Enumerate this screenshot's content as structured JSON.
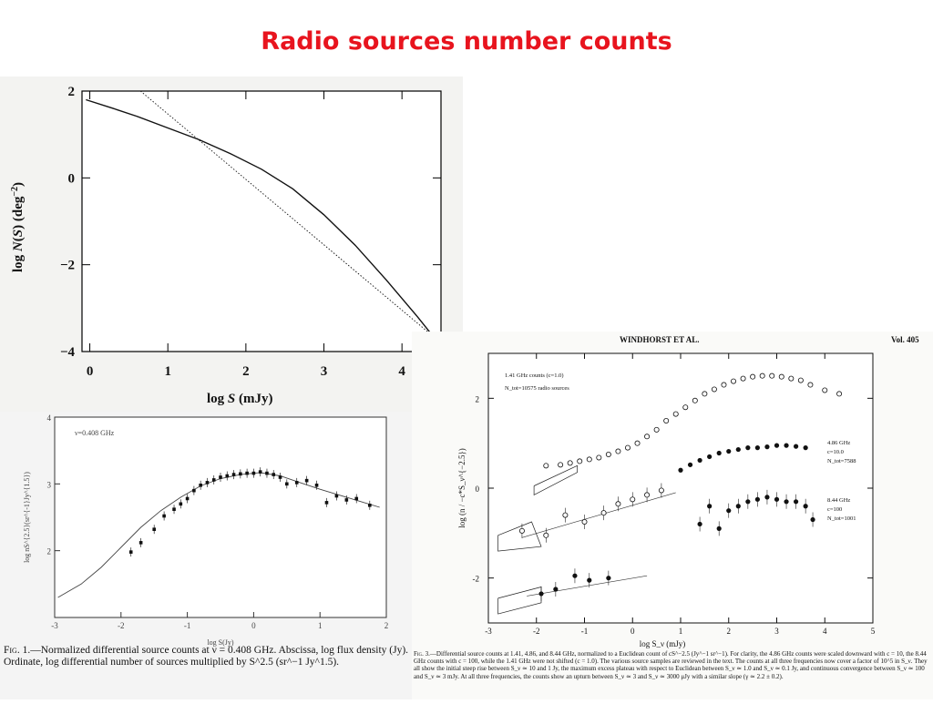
{
  "slide": {
    "title": "Radio sources number counts"
  },
  "chart_data": [
    {
      "type": "line",
      "xlabel_parts": [
        "log ",
        "S",
        " (mJy)"
      ],
      "ylabel_parts": [
        "log ",
        "N",
        "(",
        "S",
        ") (deg",
        "−2",
        ")"
      ],
      "xticks": [
        0,
        1,
        2,
        3,
        4
      ],
      "yticks": [
        2,
        0,
        -2,
        -4
      ],
      "ytick_labels": [
        "2",
        "0",
        "−2",
        "−4"
      ],
      "xlim": [
        -0.1,
        4.5
      ],
      "ylim": [
        -4,
        2
      ],
      "series": [
        {
          "style": "solid",
          "x": [
            -0.05,
            0.3,
            0.6,
            1.0,
            1.4,
            1.8,
            2.2,
            2.6,
            3.0,
            3.4,
            3.8,
            4.2,
            4.4
          ],
          "y": [
            1.8,
            1.6,
            1.42,
            1.15,
            0.88,
            0.56,
            0.2,
            -0.25,
            -0.85,
            -1.55,
            -2.35,
            -3.2,
            -3.65
          ]
        },
        {
          "style": "dotted",
          "x": [
            0.65,
            4.4
          ],
          "y": [
            2.0,
            -3.65
          ]
        }
      ]
    },
    {
      "type": "line",
      "annotation": "ν=0.408 GHz",
      "xlabel": "log S(Jy)",
      "ylabel": "log nS^{2.5}(sr^{-1}Jy^{1.5})",
      "xticks": [
        -3,
        -2,
        -1,
        0,
        1,
        2
      ],
      "yticks": [
        4,
        3,
        2
      ],
      "xlim": [
        -3,
        2
      ],
      "ylim": [
        1,
        4
      ],
      "model": {
        "x": [
          -2.95,
          -2.6,
          -2.3,
          -2.0,
          -1.7,
          -1.4,
          -1.1,
          -0.8,
          -0.5,
          -0.2,
          0.1,
          0.4,
          0.7,
          1.0,
          1.3,
          1.6,
          1.9
        ],
        "y": [
          1.3,
          1.5,
          1.75,
          2.05,
          2.35,
          2.6,
          2.8,
          2.97,
          3.08,
          3.14,
          3.17,
          3.12,
          3.02,
          2.92,
          2.83,
          2.74,
          2.65
        ]
      },
      "points": {
        "x": [
          -1.85,
          -1.7,
          -1.5,
          -1.35,
          -1.2,
          -1.1,
          -1.0,
          -0.9,
          -0.8,
          -0.7,
          -0.6,
          -0.5,
          -0.4,
          -0.3,
          -0.2,
          -0.1,
          0.0,
          0.1,
          0.2,
          0.3,
          0.4,
          0.5,
          0.65,
          0.8,
          0.95,
          1.1,
          1.25,
          1.4,
          1.55,
          1.75
        ],
        "y": [
          1.98,
          2.12,
          2.32,
          2.52,
          2.62,
          2.7,
          2.78,
          2.9,
          2.98,
          3.02,
          3.06,
          3.1,
          3.12,
          3.14,
          3.15,
          3.16,
          3.16,
          3.18,
          3.16,
          3.14,
          3.1,
          3.0,
          3.02,
          3.05,
          2.98,
          2.72,
          2.82,
          2.76,
          2.78,
          2.68
        ]
      }
    },
    {
      "type": "scatter",
      "header": "WINDHORST ET AL.",
      "volume": "Vol. 405",
      "xlabel": "log S_ν (mJy)",
      "ylabel": "log (n / −c*S_ν^{−2.5})",
      "xticks": [
        -3,
        -2,
        -1,
        0,
        1,
        2,
        3,
        4,
        5
      ],
      "yticks": [
        2,
        0,
        -2
      ],
      "xlim": [
        -3,
        5
      ],
      "ylim": [
        -3,
        3
      ],
      "legend_141": [
        "1.41 GHz counts (c=1.0)",
        "N_tot=10575 radio sources"
      ],
      "legend_486": [
        "4.86 GHz",
        "c=10.0",
        "N_tot=7588"
      ],
      "legend_844": [
        "8.44 GHz",
        "c=100",
        "N_tot=1001"
      ],
      "series": [
        {
          "marker": "open",
          "x": [
            -1.8,
            -1.5,
            -1.3,
            -1.1,
            -0.9,
            -0.7,
            -0.5,
            -0.3,
            -0.1,
            0.1,
            0.3,
            0.5,
            0.7,
            0.9,
            1.1,
            1.3,
            1.5,
            1.7,
            1.9,
            2.1,
            2.3,
            2.5,
            2.7,
            2.9,
            3.1,
            3.3,
            3.5,
            3.7,
            4.0,
            4.3
          ],
          "y": [
            0.5,
            0.52,
            0.56,
            0.6,
            0.64,
            0.68,
            0.75,
            0.82,
            0.9,
            1.0,
            1.15,
            1.3,
            1.5,
            1.65,
            1.8,
            1.95,
            2.1,
            2.2,
            2.3,
            2.38,
            2.44,
            2.48,
            2.5,
            2.5,
            2.48,
            2.44,
            2.4,
            2.3,
            2.18,
            2.1
          ]
        },
        {
          "marker": "filled",
          "x": [
            1.0,
            1.2,
            1.4,
            1.6,
            1.8,
            2.0,
            2.2,
            2.4,
            2.6,
            2.8,
            3.0,
            3.2,
            3.4,
            3.6
          ],
          "y": [
            0.4,
            0.52,
            0.62,
            0.7,
            0.78,
            0.82,
            0.86,
            0.9,
            0.9,
            0.92,
            0.95,
            0.95,
            0.93,
            0.9
          ]
        },
        {
          "marker": "filled",
          "x": [
            1.4,
            1.6,
            1.8,
            2.0,
            2.2,
            2.4,
            2.6,
            2.8,
            3.0,
            3.2,
            3.4,
            3.6,
            3.75
          ],
          "y": [
            -0.8,
            -0.4,
            -0.9,
            -0.5,
            -0.4,
            -0.3,
            -0.25,
            -0.2,
            -0.25,
            -0.3,
            -0.3,
            -0.4,
            -0.7
          ]
        },
        {
          "marker": "open",
          "x": [
            -2.3,
            -1.8,
            -1.4,
            -1.0,
            -0.6,
            -0.3,
            0.0,
            0.3,
            0.6
          ],
          "y": [
            -0.95,
            -1.05,
            -0.6,
            -0.75,
            -0.55,
            -0.35,
            -0.25,
            -0.15,
            -0.05
          ]
        },
        {
          "marker": "filled",
          "x": [
            -1.9,
            -1.6,
            -1.2,
            -0.9,
            -0.5
          ],
          "y": [
            -2.35,
            -2.25,
            -1.95,
            -2.05,
            -2.0
          ]
        }
      ]
    }
  ],
  "captions": {
    "fig1_label": "Fig. 1.",
    "fig1_text": "—Normalized differential source counts at ν = 0.408 GHz. Abscissa, log flux density (Jy). Ordinate, log differential number of sources multiplied by S^2.5 (sr^−1 Jy^1.5).",
    "fig3_label": "Fig. 3.",
    "fig3_text": "—Differential source counts at 1.41, 4.86, and 8.44 GHz, normalized to a Euclidean count of cS^−2.5 (Jy^−1 sr^−1). For clarity, the 4.86 GHz counts were scaled downward with c = 10, the 8.44 GHz counts with c = 100, while the 1.41 GHz were not shifted (c = 1.0). The various source samples are reviewed in the text. The counts at all three frequencies now cover a factor of 10^5 in S_ν. They all show the initial steep rise between S_ν ≃ 10 and 1 Jy, the maximum excess plateau with respect to Euclidean between S_ν ≃ 1.0 and S_ν ≃ 0.1 Jy, and continuous convergence between S_ν ≃ 100 and S_ν ≃ 3 mJy. At all three frequencies, the counts show an upturn between S_ν ≃ 3 and S_ν ≃ 3000 μJy with a similar slope (γ ≃ 2.2 ± 0.2)."
  }
}
